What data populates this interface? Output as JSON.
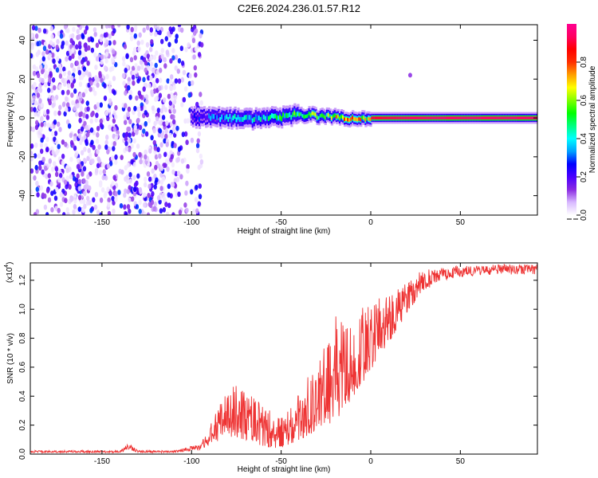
{
  "title": "C2E6.2024.236.01.57.R12",
  "chart_data": [
    {
      "type": "heatmap",
      "name": "spectrogram",
      "xlabel": "Height of straight line (km)",
      "ylabel": "Frequency (Hz)",
      "xlim": [
        -190,
        93
      ],
      "ylim": [
        -50,
        48
      ],
      "x_ticks": [
        -150,
        -100,
        -50,
        0,
        50
      ],
      "y_ticks": [
        40,
        20,
        0,
        -20,
        -40
      ],
      "colorbar": {
        "label": "Normalized spectral amplitude",
        "range": [
          0.0,
          1.0
        ],
        "ticks": [
          0.0,
          0.2,
          0.4,
          0.6,
          0.8
        ],
        "colors": [
          "#ffffff",
          "#d8b8ff",
          "#8a2be2",
          "#4b00ff",
          "#0000ff",
          "#00a0ff",
          "#00ffff",
          "#00ff80",
          "#00ff00",
          "#80ff00",
          "#ffff00",
          "#ffa000",
          "#ff3000",
          "#ff0000",
          "#ff0060",
          "#ff0090"
        ]
      },
      "features": [
        {
          "description": "broadband noise scatter",
          "x_range": [
            -190,
            -100
          ],
          "y_range": [
            -50,
            48
          ],
          "amplitude": [
            0.02,
            0.3
          ]
        },
        {
          "description": "signal band",
          "x_range": [
            -100,
            93
          ],
          "center_hz": [
            {
              "x": -100,
              "y": 0.5
            },
            {
              "x": -80,
              "y": 0.0
            },
            {
              "x": -65,
              "y": -0.5
            },
            {
              "x": -50,
              "y": 0.5
            },
            {
              "x": -40,
              "y": 1.8
            },
            {
              "x": -30,
              "y": 1.2
            },
            {
              "x": -20,
              "y": 0.3
            },
            {
              "x": -10,
              "y": -0.5
            },
            {
              "x": 0,
              "y": 0.0
            },
            {
              "x": 20,
              "y": 0.0
            },
            {
              "x": 50,
              "y": 0.0
            },
            {
              "x": 93,
              "y": 0.0
            }
          ],
          "peak_amplitude": [
            {
              "x": -100,
              "y": 0.25
            },
            {
              "x": -80,
              "y": 0.45
            },
            {
              "x": -60,
              "y": 0.5
            },
            {
              "x": -40,
              "y": 0.65
            },
            {
              "x": -20,
              "y": 0.8
            },
            {
              "x": 0,
              "y": 0.9
            },
            {
              "x": 30,
              "y": 0.95
            },
            {
              "x": 93,
              "y": 0.95
            }
          ]
        },
        {
          "description": "isolated echo",
          "x": 22,
          "y": 22
        }
      ]
    },
    {
      "type": "line",
      "name": "snr",
      "xlabel": "Height of straight line (km)",
      "ylabel": "SNR (10 * v/v)",
      "y_scale_label": "(x10",
      "y_scale_exponent": "4",
      "y_unit_multiplier": 10000,
      "xlim": [
        -190,
        93
      ],
      "ylim": [
        0,
        1.32
      ],
      "x_ticks": [
        -150,
        -100,
        -50,
        0,
        50
      ],
      "y_ticks": [
        0.0,
        0.2,
        0.4,
        0.6,
        0.8,
        1.0,
        1.2
      ],
      "y_tick_labels": [
        "0.0",
        "0.2",
        "0.4",
        "0.6",
        "0.8",
        "1.0",
        "1.2"
      ],
      "color": "#ee3333",
      "series": [
        {
          "name": "envelope_low",
          "x": [
            -190,
            -140,
            -135,
            -130,
            -110,
            -95,
            -85,
            -78,
            -70,
            -60,
            -50,
            -40,
            -30,
            -20,
            -10,
            0,
            10,
            20,
            25,
            30,
            40,
            50,
            60,
            70,
            80,
            93
          ],
          "values": [
            0.01,
            0.01,
            0.03,
            0.01,
            0.01,
            0.03,
            0.09,
            0.12,
            0.1,
            0.05,
            0.04,
            0.1,
            0.15,
            0.22,
            0.38,
            0.58,
            0.77,
            0.96,
            1.06,
            1.13,
            1.2,
            1.22,
            1.23,
            1.24,
            1.24,
            1.24
          ]
        },
        {
          "name": "envelope_high",
          "x": [
            -190,
            -140,
            -135,
            -130,
            -110,
            -95,
            -85,
            -78,
            -70,
            -60,
            -50,
            -40,
            -30,
            -20,
            -10,
            0,
            10,
            20,
            25,
            30,
            40,
            50,
            60,
            70,
            80,
            93
          ],
          "values": [
            0.025,
            0.025,
            0.075,
            0.025,
            0.025,
            0.07,
            0.32,
            0.52,
            0.48,
            0.33,
            0.25,
            0.42,
            0.65,
            0.95,
            0.98,
            1.05,
            1.12,
            1.2,
            1.25,
            1.27,
            1.29,
            1.3,
            1.3,
            1.31,
            1.31,
            1.31
          ]
        }
      ]
    }
  ]
}
